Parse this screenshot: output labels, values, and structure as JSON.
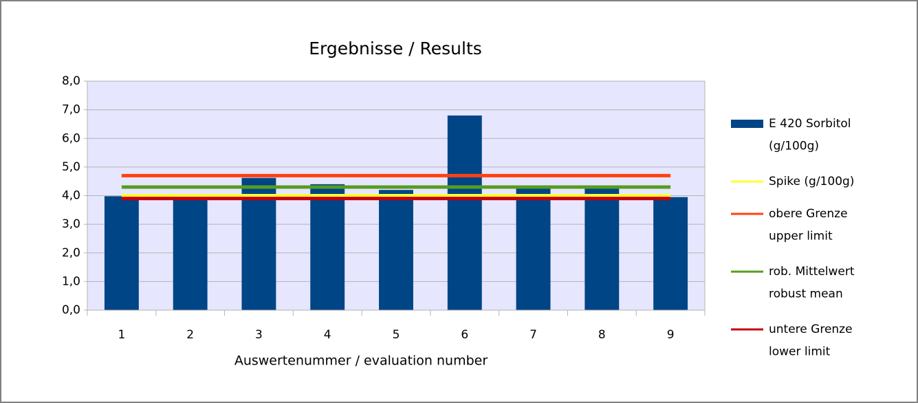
{
  "chart_data": {
    "type": "bar",
    "title": "Ergebnisse / Results",
    "x_label": "Auswertenummer / evaluation number",
    "categories": [
      "1",
      "2",
      "3",
      "4",
      "5",
      "6",
      "7",
      "8",
      "9"
    ],
    "series": [
      {
        "name": "E 420 Sorbitol\n(g/100g)",
        "type": "bar",
        "color": "#004586",
        "values": [
          3.98,
          3.97,
          4.62,
          4.4,
          4.2,
          6.8,
          4.35,
          4.35,
          3.95
        ]
      },
      {
        "name": "Spike (g/100g)",
        "type": "line",
        "color": "#ffff33",
        "values": [
          4.0,
          4.0,
          4.0,
          4.0,
          4.0,
          4.0,
          4.0,
          4.0,
          4.0
        ]
      },
      {
        "name": "obere Grenze\nupper limit",
        "type": "line",
        "color": "#ff420e",
        "values": [
          4.7,
          4.7,
          4.7,
          4.7,
          4.7,
          4.7,
          4.7,
          4.7,
          4.7
        ]
      },
      {
        "name": "rob. Mittelwert\nrobust mean",
        "type": "line",
        "color": "#579d1c",
        "values": [
          4.3,
          4.3,
          4.3,
          4.3,
          4.3,
          4.3,
          4.3,
          4.3,
          4.3
        ]
      },
      {
        "name": "untere Grenze\nlower limit",
        "type": "line",
        "color": "#c5000b",
        "values": [
          3.9,
          3.9,
          3.9,
          3.9,
          3.9,
          3.9,
          3.9,
          3.9,
          3.9
        ]
      }
    ],
    "ylim": [
      0,
      8
    ],
    "yticks": [
      {
        "value": 0,
        "label": "0,0"
      },
      {
        "value": 1,
        "label": "1,0"
      },
      {
        "value": 2,
        "label": "2,0"
      },
      {
        "value": 3,
        "label": "3,0"
      },
      {
        "value": 4,
        "label": "4,0"
      },
      {
        "value": 5,
        "label": "5,0"
      },
      {
        "value": 6,
        "label": "6,0"
      },
      {
        "value": 7,
        "label": "7,0"
      },
      {
        "value": 8,
        "label": "8,0"
      }
    ],
    "grid": true,
    "legend": "right"
  }
}
